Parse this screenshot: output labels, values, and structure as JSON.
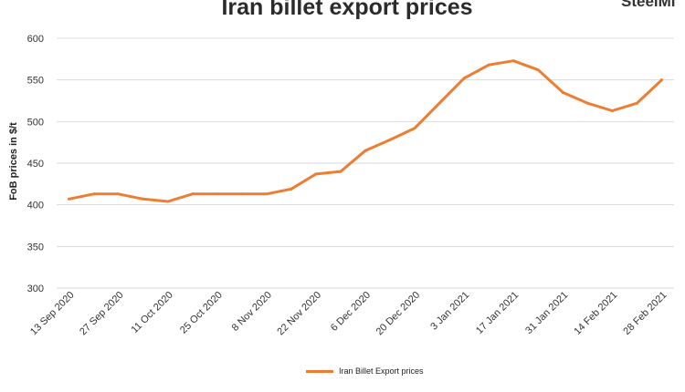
{
  "colors": {
    "line": "#ED7D31",
    "grid": "#d9d9d9",
    "text": "#333333"
  },
  "brand_text": "SteelMi",
  "chart_data": {
    "type": "line",
    "title": "Iran billet export prices",
    "xlabel": "",
    "ylabel": "FoB prices in $/t",
    "ylim": [
      300,
      600
    ],
    "yticks": [
      300,
      350,
      400,
      450,
      500,
      550,
      600
    ],
    "grid": true,
    "legend_position": "bottom",
    "tick_labels": [
      "13 Sep 2020",
      "27 Sep 2020",
      "11 Oct 2020",
      "25 Oct 2020",
      "8 Nov 2020",
      "22 Nov 2020",
      "6 Dec 2020",
      "20 Dec 2020",
      "3 Jan 2021",
      "17 Jan 2021",
      "31 Jan 2021",
      "14 Feb 2021",
      "28 Feb 2021"
    ],
    "x": [
      "13 Sep 2020",
      "20 Sep 2020",
      "27 Sep 2020",
      "4 Oct 2020",
      "11 Oct 2020",
      "18 Oct 2020",
      "25 Oct 2020",
      "1 Nov 2020",
      "8 Nov 2020",
      "15 Nov 2020",
      "22 Nov 2020",
      "29 Nov 2020",
      "6 Dec 2020",
      "13 Dec 2020",
      "20 Dec 2020",
      "27 Dec 2020",
      "3 Jan 2021",
      "10 Jan 2021",
      "17 Jan 2021",
      "24 Jan 2021",
      "31 Jan 2021",
      "7 Feb 2021",
      "14 Feb 2021",
      "21 Feb 2021",
      "28 Feb 2021"
    ],
    "series": [
      {
        "name": "Iran Billet Export prices",
        "values": [
          407,
          413,
          413,
          407,
          404,
          413,
          413,
          413,
          413,
          419,
          437,
          440,
          465,
          478,
          492,
          522,
          552,
          568,
          573,
          562,
          535,
          522,
          513,
          522,
          550
        ]
      }
    ]
  }
}
